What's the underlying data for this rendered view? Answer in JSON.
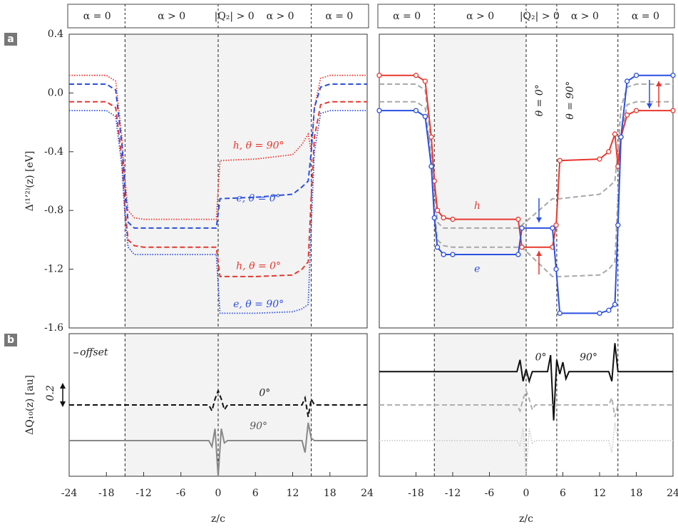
{
  "headers": [
    {
      "labels": [
        "α = 0",
        "α > 0",
        "|Q₂| > 0",
        "α > 0",
        "α = 0"
      ]
    },
    {
      "labels": [
        "α = 0",
        "α > 0",
        "|Q₂| > 0",
        "α > 0",
        "α = 0"
      ]
    }
  ],
  "panel_labels": [
    "a",
    "b"
  ],
  "chart_data": [
    {
      "type": "line",
      "ylabel": "Δ⁽¹’²⁾(z) [eV]",
      "xlim": [
        -24,
        24
      ],
      "ylim": [
        -1.6,
        0.4
      ],
      "yticks": [
        0.4,
        {
          "value": 0,
          "label": "0.0"
        },
        -0.4,
        -0.8,
        -1.2,
        -1.6
      ],
      "shade": [
        -15,
        15
      ],
      "vlines": [
        -15,
        0,
        15
      ],
      "x": [
        -24,
        -18,
        -16.5,
        -15.5,
        -15,
        -14.5,
        -13.5,
        -12,
        -0.3,
        0.3,
        6,
        12,
        13.5,
        14.5,
        15,
        15.5,
        16.5,
        18,
        24
      ],
      "series": [
        {
          "color": "#e8382f",
          "dash": "dotted",
          "values": [
            0.12,
            0.12,
            0.08,
            -0.3,
            -0.6,
            -0.8,
            -0.85,
            -0.86,
            -0.86,
            -0.46,
            -0.45,
            -0.42,
            -0.35,
            -0.28,
            -0.4,
            -0.1,
            0.1,
            0.12,
            0.12
          ]
        },
        {
          "color": "#2b4fe0",
          "dash": "dashed",
          "values": [
            0.06,
            0.06,
            0.02,
            -0.35,
            -0.65,
            -0.88,
            -0.92,
            -0.92,
            -0.92,
            -0.72,
            -0.71,
            -0.69,
            -0.64,
            -0.6,
            -0.4,
            -0.1,
            0.04,
            0.06,
            0.06
          ]
        },
        {
          "color": "#e8382f",
          "dash": "dashed",
          "values": [
            -0.06,
            -0.06,
            -0.1,
            -0.45,
            -0.8,
            -1.0,
            -1.04,
            -1.05,
            -1.05,
            -1.25,
            -1.25,
            -1.24,
            -1.2,
            -1.15,
            -0.7,
            -0.3,
            -0.08,
            -0.06,
            -0.06
          ]
        },
        {
          "color": "#2b4fe0",
          "dash": "dotted",
          "values": [
            -0.12,
            -0.12,
            -0.16,
            -0.5,
            -0.85,
            -1.05,
            -1.1,
            -1.1,
            -1.1,
            -1.5,
            -1.5,
            -1.49,
            -1.47,
            -1.44,
            -0.9,
            -0.4,
            -0.14,
            -0.12,
            -0.12
          ]
        }
      ],
      "annotations": [
        {
          "text": "h,  θ = 90°",
          "color": "#e8382f"
        },
        {
          "text": "e,  θ = 0°",
          "color": "#2b4fe0"
        },
        {
          "text": "h,  θ = 0°",
          "color": "#e8382f"
        },
        {
          "text": "e,  θ = 90°",
          "color": "#2b4fe0"
        }
      ]
    },
    {
      "type": "line",
      "xlim": [
        -24,
        24
      ],
      "ylim": [
        -1.6,
        0.4
      ],
      "shade": [
        -15,
        0
      ],
      "vlines": [
        -15,
        0,
        5,
        15
      ],
      "x": [
        -24,
        -18,
        -16.5,
        -15.5,
        -15,
        -14.5,
        -13.5,
        -12,
        -1.3,
        -0.7,
        4.3,
        4.9,
        5.5,
        12,
        13.5,
        14.5,
        15,
        15.5,
        16.5,
        18,
        24
      ],
      "series": [
        {
          "color": "#a8a8a8",
          "dash": "dashed",
          "values": [
            0.06,
            0.06,
            0.02,
            -0.35,
            -0.65,
            -0.88,
            -0.92,
            -0.92,
            -0.92,
            -0.9,
            -0.72,
            -0.72,
            -0.72,
            -0.69,
            -0.64,
            -0.6,
            -0.4,
            -0.1,
            0.04,
            0.06,
            0.06
          ]
        },
        {
          "color": "#a8a8a8",
          "dash": "dashed",
          "values": [
            -0.06,
            -0.06,
            -0.1,
            -0.45,
            -0.8,
            -1.0,
            -1.04,
            -1.05,
            -1.05,
            -1.05,
            -1.25,
            -1.25,
            -1.25,
            -1.24,
            -1.2,
            -1.15,
            -0.7,
            -0.3,
            -0.08,
            -0.06,
            -0.06
          ]
        },
        {
          "color": "#e8382f",
          "dash": "solid",
          "markers": true,
          "values": [
            0.12,
            0.12,
            0.08,
            -0.3,
            -0.6,
            -0.8,
            -0.85,
            -0.86,
            -0.86,
            -1.05,
            -1.05,
            -0.9,
            -0.46,
            -0.45,
            -0.4,
            -0.28,
            -0.5,
            -0.3,
            -0.15,
            -0.12,
            -0.12
          ]
        },
        {
          "color": "#2b4fe0",
          "dash": "solid",
          "markers": true,
          "values": [
            -0.12,
            -0.12,
            -0.16,
            -0.5,
            -0.85,
            -1.05,
            -1.1,
            -1.1,
            -1.1,
            -0.92,
            -0.92,
            -1.2,
            -1.5,
            -1.5,
            -1.48,
            -1.44,
            -0.9,
            -0.3,
            0.08,
            0.12,
            0.12
          ]
        }
      ],
      "annotations": [
        {
          "text": "h",
          "color": "#e8382f"
        },
        {
          "text": "e",
          "color": "#2b4fe0"
        },
        {
          "text": "θ = 0°",
          "color": "#222222"
        },
        {
          "text": "θ = 90°",
          "color": "#222222"
        }
      ]
    },
    {
      "type": "line",
      "ylabel": "ΔQ₁₀(z) [au]",
      "xlabel": "z/c",
      "xlim": [
        -24,
        24
      ],
      "ylim": [
        -0.6,
        0.6
      ],
      "xticks": [
        -24,
        -18,
        -12,
        -6,
        0,
        6,
        12,
        18,
        24
      ],
      "shade": [
        -15,
        15
      ],
      "vlines": [
        -15,
        0,
        15
      ],
      "x": [
        -24,
        -1.5,
        -1,
        -0.5,
        0,
        0.5,
        1,
        1.5,
        13.5,
        14,
        14.5,
        15,
        15.5,
        24
      ],
      "series": [
        {
          "color": "#111111",
          "dash": "dashed",
          "values": [
            0,
            0,
            -0.05,
            0.05,
            0.12,
            0.05,
            -0.04,
            0,
            0,
            0.06,
            -0.1,
            0.05,
            0,
            0
          ]
        },
        {
          "color": "#888888",
          "dash": "solid",
          "values": [
            -0.3,
            -0.3,
            -0.35,
            -0.2,
            -0.6,
            -0.2,
            -0.32,
            -0.3,
            -0.3,
            -0.4,
            -0.15,
            -0.28,
            -0.3,
            -0.3
          ]
        }
      ],
      "annotations": [
        {
          "text": "offset",
          "color": "#222222"
        },
        {
          "text": "0.2",
          "color": "#222222"
        },
        {
          "text": "0°",
          "color": "#222222"
        },
        {
          "text": "90°",
          "color": "#555555"
        }
      ]
    },
    {
      "type": "line",
      "xlabel": "z/c",
      "xlim": [
        -24,
        24
      ],
      "ylim": [
        -0.6,
        0.6
      ],
      "xticks": [
        -18,
        -12,
        -6,
        0,
        6,
        12,
        18,
        24
      ],
      "shade": [
        -15,
        0
      ],
      "vlines": [
        -15,
        0,
        5,
        15
      ],
      "x": [
        -24,
        -1.5,
        -1,
        -0.5,
        0,
        0.5,
        1,
        1.5,
        3.5,
        4,
        4.5,
        5,
        5.5,
        6,
        6.5,
        7,
        13.5,
        14,
        14.5,
        15,
        24
      ],
      "series": [
        {
          "color": "#111111",
          "dash": "solid",
          "values": [
            0.28,
            0.28,
            0.38,
            0.2,
            0.3,
            0.2,
            0.28,
            0.28,
            0.28,
            0.42,
            -0.13,
            0.38,
            0.26,
            0.36,
            0.22,
            0.28,
            0.28,
            0.2,
            0.52,
            0.28,
            0.28
          ]
        },
        {
          "color": "#b0b0b0",
          "dash": "dashed",
          "values": [
            0,
            0,
            -0.05,
            0.05,
            0.12,
            0.05,
            -0.04,
            0,
            0,
            0,
            0,
            0,
            0,
            0,
            0,
            0,
            0,
            0.06,
            -0.1,
            0,
            0
          ]
        },
        {
          "color": "#cccccc",
          "dash": "dotted",
          "values": [
            -0.3,
            -0.3,
            -0.35,
            -0.2,
            -0.6,
            -0.2,
            -0.32,
            -0.3,
            -0.3,
            -0.3,
            -0.3,
            -0.3,
            -0.3,
            -0.3,
            -0.3,
            -0.3,
            -0.3,
            -0.4,
            -0.15,
            -0.3,
            -0.3
          ]
        }
      ],
      "annotations": [
        {
          "text": "0°",
          "color": "#222222"
        },
        {
          "text": "90°",
          "color": "#222222"
        }
      ]
    }
  ]
}
